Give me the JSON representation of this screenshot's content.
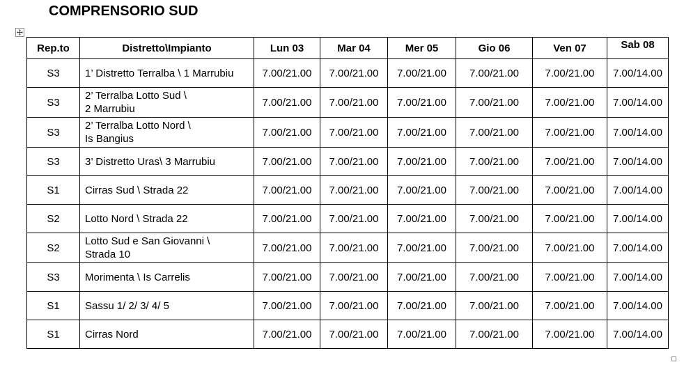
{
  "title": "COMPRENSORIO SUD",
  "icons": {
    "table_move_handle": "four-direction-move-arrows",
    "table_resize_handle": "small-square"
  },
  "table": {
    "columns": [
      "Rep.to",
      "Distretto\\Impianto",
      "Lun 03",
      "Mar 04",
      "Mer 05",
      "Gio 06",
      "Ven 07",
      "Sab 08"
    ],
    "rows": [
      {
        "repto": "S3",
        "impianto": "1’ Distretto Terralba \\ 1 Marrubiu",
        "values": [
          "7.00/21.00",
          "7.00/21.00",
          "7.00/21.00",
          "7.00/21.00",
          "7.00/21.00",
          "7.00/14.00"
        ]
      },
      {
        "repto": "S3",
        "impianto": "2’ Terralba Lotto Sud \\\n2 Marrubiu",
        "values": [
          "7.00/21.00",
          "7.00/21.00",
          "7.00/21.00",
          "7.00/21.00",
          "7.00/21.00",
          "7.00/14.00"
        ]
      },
      {
        "repto": "S3",
        "impianto": "2’ Terralba Lotto Nord \\\nIs Bangius",
        "values": [
          "7.00/21.00",
          "7.00/21.00",
          "7.00/21.00",
          "7.00/21.00",
          "7.00/21.00",
          "7.00/14.00"
        ]
      },
      {
        "repto": "S3",
        "impianto": "3’ Distretto Uras\\ 3 Marrubiu",
        "values": [
          "7.00/21.00",
          "7.00/21.00",
          "7.00/21.00",
          "7.00/21.00",
          "7.00/21.00",
          "7.00/14.00"
        ]
      },
      {
        "repto": "S1",
        "impianto": "Cirras Sud \\ Strada 22",
        "values": [
          "7.00/21.00",
          "7.00/21.00",
          "7.00/21.00",
          "7.00/21.00",
          "7.00/21.00",
          "7.00/14.00"
        ]
      },
      {
        "repto": "S2",
        "impianto": "Lotto Nord \\ Strada 22",
        "values": [
          "7.00/21.00",
          "7.00/21.00",
          "7.00/21.00",
          "7.00/21.00",
          "7.00/21.00",
          "7.00/14.00"
        ]
      },
      {
        "repto": "S2",
        "impianto": "Lotto Sud e San Giovanni \\\nStrada 10",
        "values": [
          "7.00/21.00",
          "7.00/21.00",
          "7.00/21.00",
          "7.00/21.00",
          "7.00/21.00",
          "7.00/14.00"
        ]
      },
      {
        "repto": "S3",
        "impianto": "Morimenta \\ Is Carrelis",
        "values": [
          "7.00/21.00",
          "7.00/21.00",
          "7.00/21.00",
          "7.00/21.00",
          "7.00/21.00",
          "7.00/14.00"
        ]
      },
      {
        "repto": "S1",
        "impianto": "Sassu 1/ 2/ 3/ 4/ 5",
        "values": [
          "7.00/21.00",
          "7.00/21.00",
          "7.00/21.00",
          "7.00/21.00",
          "7.00/21.00",
          "7.00/14.00"
        ]
      },
      {
        "repto": "S1",
        "impianto": "Cirras Nord",
        "values": [
          "7.00/21.00",
          "7.00/21.00",
          "7.00/21.00",
          "7.00/21.00",
          "7.00/21.00",
          "7.00/14.00"
        ]
      }
    ]
  }
}
